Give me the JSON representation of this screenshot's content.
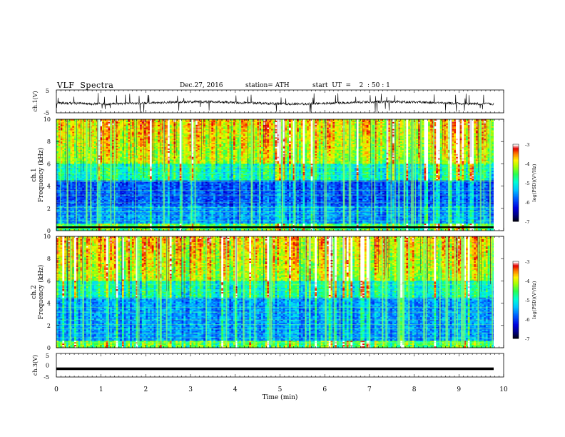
{
  "header": {
    "title": "VLF  Spectra",
    "date": "Dec.27, 2016",
    "station": "station= ATH",
    "start": "start  UT  =    2  : 50 : 1"
  },
  "chart_data": [
    {
      "type": "line",
      "id": "ch1",
      "ylabel": "ch.1(V)",
      "ylim": [
        -5,
        5
      ],
      "yticks": [
        "5",
        "-5"
      ],
      "xlim": [
        0,
        10
      ],
      "description_values": "noisy waveform around 0 V with frequent spikes",
      "color": "#000000"
    },
    {
      "type": "heatmap",
      "id": "ch1-spectrogram",
      "ylabel_channel": "ch.1",
      "ylabel": "Frequency  (kHz)",
      "ylim": [
        0,
        10
      ],
      "yticks": [
        "0",
        "2",
        "4",
        "6",
        "8",
        "10"
      ],
      "xlim": [
        0,
        9.8
      ],
      "colorbar": {
        "label": "log(PSD)(V²/Hz)",
        "range": [
          -7,
          -3
        ],
        "ticks": [
          "-3",
          "-4",
          "-5",
          "-6",
          "-7"
        ],
        "colors": [
          "#000000",
          "#00008b",
          "#0000ff",
          "#00bfff",
          "#00ffff",
          "#00ff7f",
          "#7fff00",
          "#ffff00",
          "#ff7f00",
          "#ff0000",
          "#ffffff"
        ]
      }
    },
    {
      "type": "heatmap",
      "id": "ch2-spectrogram",
      "ylabel_channel": "ch.2",
      "ylabel": "Frequency  (kHz)",
      "ylim": [
        0,
        10
      ],
      "yticks": [
        "0",
        "2",
        "4",
        "6",
        "8",
        "10"
      ],
      "xlim": [
        0,
        9.8
      ],
      "colorbar": {
        "label": "log(PSD)(V²/Hz)",
        "range": [
          -7,
          -3
        ],
        "ticks": [
          "-3",
          "-4",
          "-5",
          "-6",
          "-7"
        ]
      }
    },
    {
      "type": "line",
      "id": "ch3",
      "ylabel": "ch.3(V)",
      "ylim": [
        -5,
        5
      ],
      "yticks": [
        "5",
        "0",
        "-5"
      ],
      "xlim": [
        0,
        10
      ],
      "constant_value": -1.5,
      "color": "#000000"
    }
  ],
  "xaxis": {
    "label": "Time  (min)",
    "ticks": [
      "0",
      "1",
      "2",
      "3",
      "4",
      "5",
      "6",
      "7",
      "8",
      "9",
      "10"
    ]
  }
}
